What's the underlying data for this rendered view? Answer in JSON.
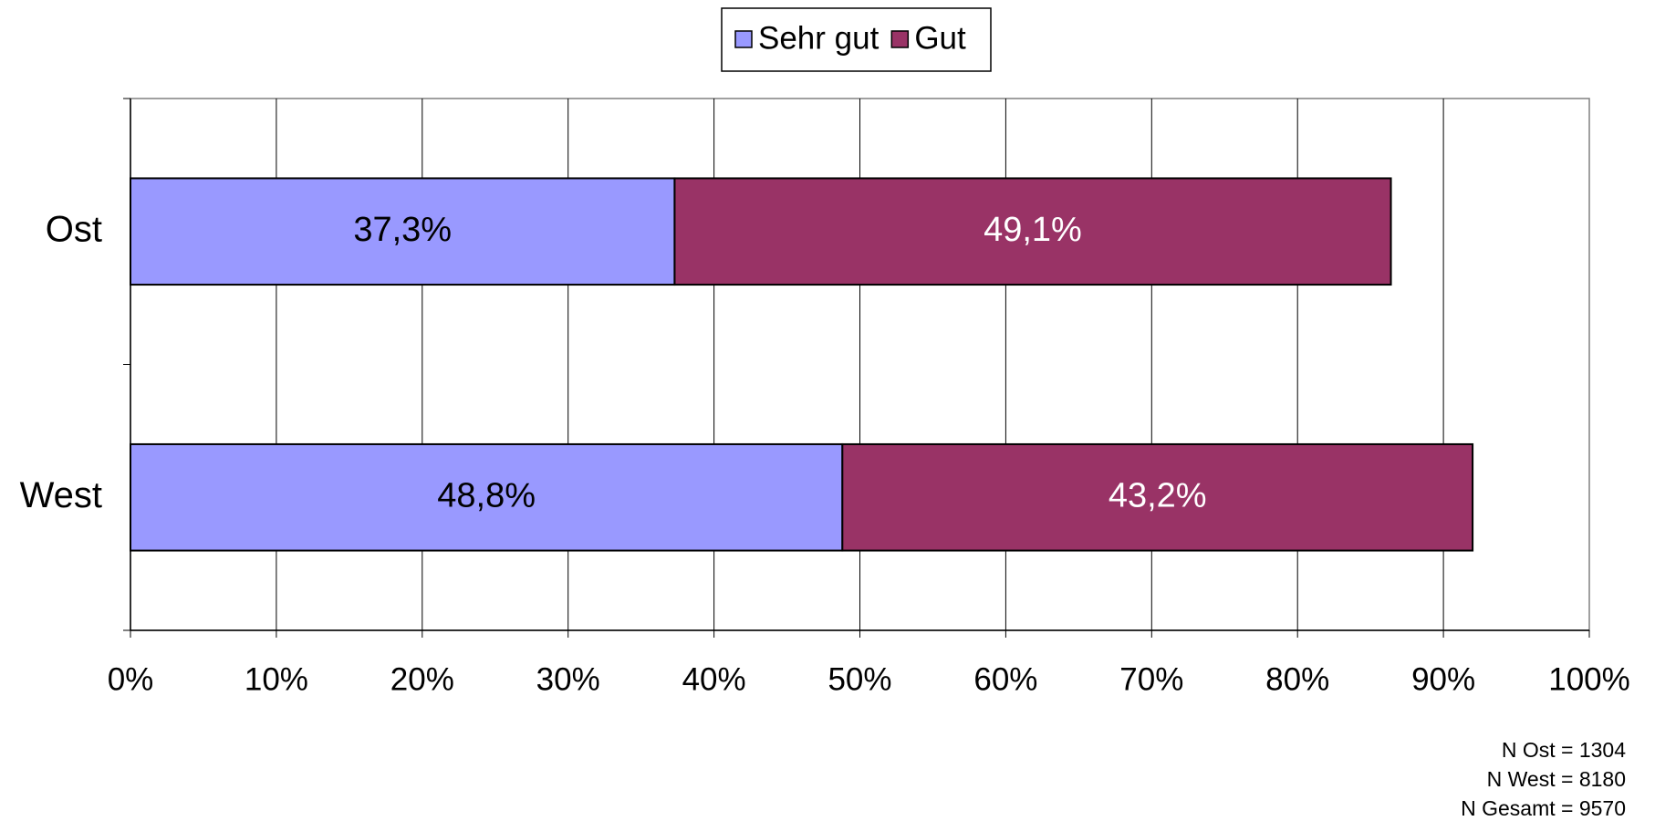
{
  "chart_data": {
    "type": "stacked_bar_horizontal",
    "categories": [
      "Ost",
      "West"
    ],
    "series": [
      {
        "name": "Sehr gut",
        "color": "#9999ff",
        "values": [
          37.3,
          48.8
        ],
        "value_labels": [
          "37,3%",
          "48,8%"
        ]
      },
      {
        "name": "Gut",
        "color": "#993366",
        "values": [
          49.1,
          43.2
        ],
        "value_labels": [
          "49,1%",
          "43,2%"
        ]
      }
    ],
    "xlim": [
      0,
      100
    ],
    "xticks": [
      {
        "value": 0,
        "label": "0%"
      },
      {
        "value": 10,
        "label": "10%"
      },
      {
        "value": 20,
        "label": "20%"
      },
      {
        "value": 30,
        "label": "30%"
      },
      {
        "value": 40,
        "label": "40%"
      },
      {
        "value": 50,
        "label": "50%"
      },
      {
        "value": 60,
        "label": "60%"
      },
      {
        "value": 70,
        "label": "70%"
      },
      {
        "value": 80,
        "label": "80%"
      },
      {
        "value": 90,
        "label": "90%"
      },
      {
        "value": 100,
        "label": "100%"
      }
    ],
    "grid": true,
    "legend": "top",
    "annotations": [
      "N Ost = 1304",
      "N West = 8180",
      "N Gesamt = 9570"
    ]
  }
}
